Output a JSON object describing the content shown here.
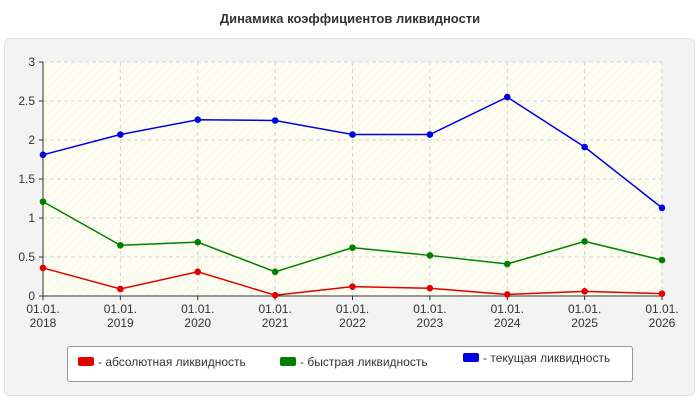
{
  "chart_data": {
    "type": "line",
    "title": "Динамика коэффициентов ликвидности",
    "xlabel": "",
    "ylabel": "",
    "categories": [
      [
        "01.01.",
        "2018"
      ],
      [
        "01.01.",
        "2019"
      ],
      [
        "01.01.",
        "2020"
      ],
      [
        "01.01.",
        "2021"
      ],
      [
        "01.01.",
        "2022"
      ],
      [
        "01.01.",
        "2023"
      ],
      [
        "01.01.",
        "2024"
      ],
      [
        "01.01.",
        "2025"
      ],
      [
        "01.01.",
        "2026"
      ]
    ],
    "ylim": [
      0,
      3
    ],
    "yticks": [
      "0",
      "0.5",
      "1",
      "1.5",
      "2",
      "2.5",
      "3"
    ],
    "grid": true,
    "legend_position": "bottom",
    "series": [
      {
        "name": "- абсолютная ликвидность",
        "color": "#e00000",
        "values": [
          0.36,
          0.09,
          0.31,
          0.01,
          0.12,
          0.1,
          0.02,
          0.06,
          0.03
        ]
      },
      {
        "name": "- быстрая ликвидность",
        "color": "#008000",
        "values": [
          1.21,
          0.65,
          0.69,
          0.31,
          0.62,
          0.52,
          0.41,
          0.7,
          0.46
        ]
      },
      {
        "name": "- текущая ликвидность",
        "color": "#0000e0",
        "values": [
          1.81,
          2.07,
          2.26,
          2.25,
          2.07,
          2.07,
          2.55,
          1.91,
          1.13
        ]
      }
    ]
  }
}
